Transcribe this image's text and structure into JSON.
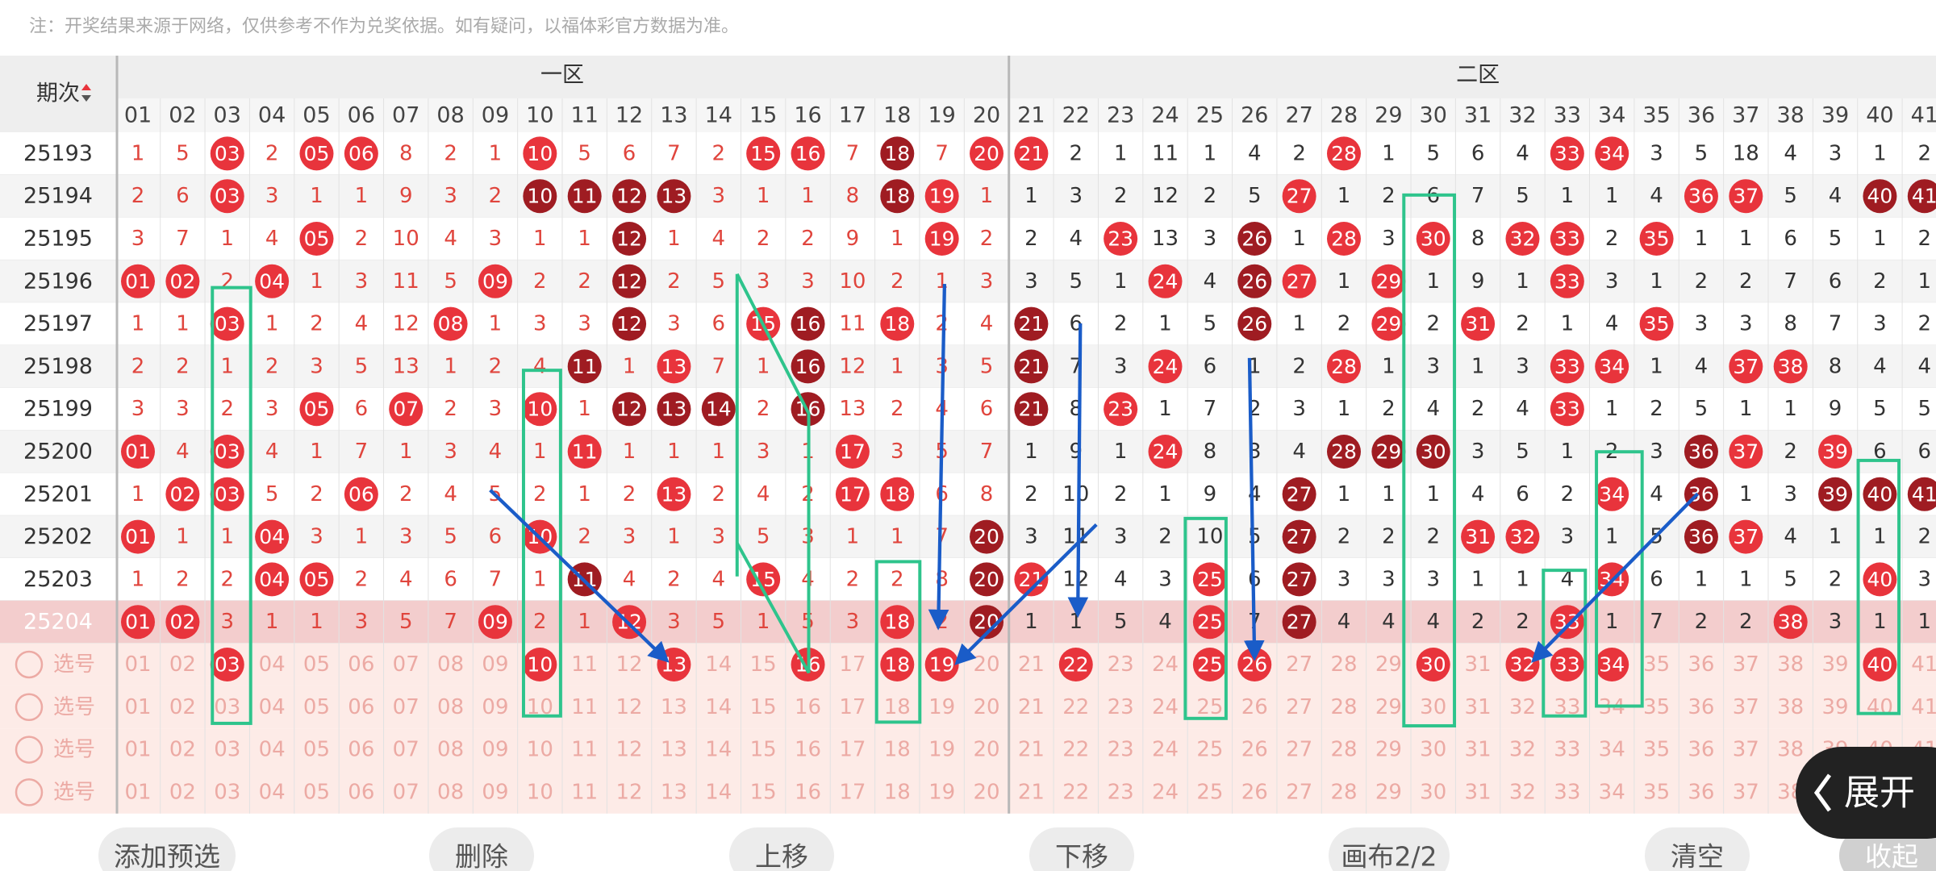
{
  "note": "注：开奖结果来源于网络，仅供参考不作为兑奖依据。如有疑问，以福体彩官方数据为准。",
  "header": {
    "period": "期次",
    "zones": [
      "一区",
      "二区"
    ],
    "numbers": [
      "01",
      "02",
      "03",
      "04",
      "05",
      "06",
      "07",
      "08",
      "09",
      "10",
      "11",
      "12",
      "13",
      "14",
      "15",
      "16",
      "17",
      "18",
      "19",
      "20",
      "21",
      "22",
      "23",
      "24",
      "25",
      "26",
      "27",
      "28",
      "29",
      "30",
      "31",
      "32",
      "33",
      "34",
      "35",
      "36",
      "37",
      "38",
      "39",
      "40",
      "41"
    ]
  },
  "colors": {
    "red": "#e8343c",
    "dark": "#9f1c22",
    "zone1_text": "#e0453d",
    "zone2_text": "#333333",
    "highlight": "#f3cdcd",
    "select_bg": "#fdebe7",
    "select_text": "#ecaaa4"
  },
  "rows": [
    {
      "period": "25193",
      "cells": [
        "1",
        "5",
        {
          "text": "03",
          "ball": "red"
        },
        "2",
        {
          "text": "05",
          "ball": "red"
        },
        {
          "text": "06",
          "ball": "red"
        },
        "8",
        "2",
        "1",
        {
          "text": "10",
          "ball": "red"
        },
        "5",
        "6",
        "7",
        "2",
        {
          "text": "15",
          "ball": "red"
        },
        {
          "text": "16",
          "ball": "red"
        },
        "7",
        {
          "text": "18",
          "ball": "dark"
        },
        "7",
        {
          "text": "20",
          "ball": "red"
        },
        {
          "text": "21",
          "ball": "red"
        },
        "2",
        "1",
        "11",
        "1",
        "4",
        "2",
        {
          "text": "28",
          "ball": "red"
        },
        "1",
        "5",
        "6",
        "4",
        {
          "text": "33",
          "ball": "red"
        },
        {
          "text": "34",
          "ball": "red"
        },
        "3",
        "5",
        "18",
        "4",
        "3",
        "1",
        "2"
      ]
    },
    {
      "period": "25194",
      "cells": [
        "2",
        "6",
        {
          "text": "03",
          "ball": "red"
        },
        "3",
        "1",
        "1",
        "9",
        "3",
        "2",
        {
          "text": "10",
          "ball": "dark"
        },
        {
          "text": "11",
          "ball": "dark"
        },
        {
          "text": "12",
          "ball": "dark"
        },
        {
          "text": "13",
          "ball": "dark"
        },
        "3",
        "1",
        "1",
        "8",
        {
          "text": "18",
          "ball": "dark"
        },
        {
          "text": "19",
          "ball": "red"
        },
        "1",
        "1",
        "3",
        "2",
        "12",
        "2",
        "5",
        {
          "text": "27",
          "ball": "red"
        },
        "1",
        "2",
        "6",
        "7",
        "5",
        "1",
        "1",
        "4",
        {
          "text": "36",
          "ball": "red"
        },
        {
          "text": "37",
          "ball": "red"
        },
        "5",
        "4",
        {
          "text": "40",
          "ball": "dark"
        },
        {
          "text": "41",
          "ball": "dark"
        }
      ]
    },
    {
      "period": "25195",
      "cells": [
        "3",
        "7",
        "1",
        "4",
        {
          "text": "05",
          "ball": "red"
        },
        "2",
        "10",
        "4",
        "3",
        "1",
        "1",
        {
          "text": "12",
          "ball": "dark"
        },
        "1",
        "4",
        "2",
        "2",
        "9",
        "1",
        {
          "text": "19",
          "ball": "red"
        },
        "2",
        "2",
        "4",
        {
          "text": "23",
          "ball": "red"
        },
        "13",
        "3",
        {
          "text": "26",
          "ball": "dark"
        },
        "1",
        {
          "text": "28",
          "ball": "red"
        },
        "3",
        {
          "text": "30",
          "ball": "red"
        },
        "8",
        {
          "text": "32",
          "ball": "red"
        },
        {
          "text": "33",
          "ball": "red"
        },
        "2",
        {
          "text": "35",
          "ball": "red"
        },
        "1",
        "1",
        "6",
        "5",
        "1",
        "2"
      ]
    },
    {
      "period": "25196",
      "cells": [
        {
          "text": "01",
          "ball": "red"
        },
        {
          "text": "02",
          "ball": "red"
        },
        "2",
        {
          "text": "04",
          "ball": "red"
        },
        "1",
        "3",
        "11",
        "5",
        {
          "text": "09",
          "ball": "red"
        },
        "2",
        "2",
        {
          "text": "12",
          "ball": "dark"
        },
        "2",
        "5",
        "3",
        "3",
        "10",
        "2",
        "1",
        "3",
        "3",
        "5",
        "1",
        {
          "text": "24",
          "ball": "red"
        },
        "4",
        {
          "text": "26",
          "ball": "dark"
        },
        {
          "text": "27",
          "ball": "red"
        },
        "1",
        {
          "text": "29",
          "ball": "red"
        },
        "1",
        "9",
        "1",
        {
          "text": "33",
          "ball": "red"
        },
        "3",
        "1",
        "2",
        "2",
        "7",
        "6",
        "2",
        "1"
      ]
    },
    {
      "period": "25197",
      "cells": [
        "1",
        "1",
        {
          "text": "03",
          "ball": "red"
        },
        "1",
        "2",
        "4",
        "12",
        {
          "text": "08",
          "ball": "red"
        },
        "1",
        "3",
        "3",
        {
          "text": "12",
          "ball": "dark"
        },
        "3",
        "6",
        {
          "text": "15",
          "ball": "red"
        },
        {
          "text": "16",
          "ball": "dark"
        },
        "11",
        {
          "text": "18",
          "ball": "red"
        },
        "2",
        "4",
        {
          "text": "21",
          "ball": "dark"
        },
        "6",
        "2",
        "1",
        "5",
        {
          "text": "26",
          "ball": "dark"
        },
        "1",
        "2",
        {
          "text": "29",
          "ball": "red"
        },
        "2",
        {
          "text": "31",
          "ball": "red"
        },
        "2",
        "1",
        "4",
        {
          "text": "35",
          "ball": "red"
        },
        "3",
        "3",
        "8",
        "7",
        "3",
        "2"
      ]
    },
    {
      "period": "25198",
      "cells": [
        "2",
        "2",
        "1",
        "2",
        "3",
        "5",
        "13",
        "1",
        "2",
        "4",
        {
          "text": "11",
          "ball": "dark"
        },
        "1",
        {
          "text": "13",
          "ball": "red"
        },
        "7",
        "1",
        {
          "text": "16",
          "ball": "dark"
        },
        "12",
        "1",
        "3",
        "5",
        {
          "text": "21",
          "ball": "dark"
        },
        "7",
        "3",
        {
          "text": "24",
          "ball": "red"
        },
        "6",
        "1",
        "2",
        {
          "text": "28",
          "ball": "red"
        },
        "1",
        "3",
        "1",
        "3",
        {
          "text": "33",
          "ball": "red"
        },
        {
          "text": "34",
          "ball": "red"
        },
        "1",
        "4",
        {
          "text": "37",
          "ball": "red"
        },
        {
          "text": "38",
          "ball": "red"
        },
        "8",
        "4",
        "4"
      ]
    },
    {
      "period": "25199",
      "cells": [
        "3",
        "3",
        "2",
        "3",
        {
          "text": "05",
          "ball": "red"
        },
        "6",
        {
          "text": "07",
          "ball": "red"
        },
        "2",
        "3",
        {
          "text": "10",
          "ball": "red"
        },
        "1",
        {
          "text": "12",
          "ball": "dark"
        },
        {
          "text": "13",
          "ball": "dark"
        },
        {
          "text": "14",
          "ball": "dark"
        },
        "2",
        {
          "text": "16",
          "ball": "dark"
        },
        "13",
        "2",
        "4",
        "6",
        {
          "text": "21",
          "ball": "dark"
        },
        "8",
        {
          "text": "23",
          "ball": "red"
        },
        "1",
        "7",
        "2",
        "3",
        "1",
        "2",
        "4",
        "2",
        "4",
        {
          "text": "33",
          "ball": "red"
        },
        "1",
        "2",
        "5",
        "1",
        "1",
        "9",
        "5",
        "5"
      ]
    },
    {
      "period": "25200",
      "cells": [
        {
          "text": "01",
          "ball": "red"
        },
        "4",
        {
          "text": "03",
          "ball": "red"
        },
        "4",
        "1",
        "7",
        "1",
        "3",
        "4",
        "1",
        {
          "text": "11",
          "ball": "red"
        },
        "1",
        "1",
        "1",
        "3",
        "1",
        {
          "text": "17",
          "ball": "red"
        },
        "3",
        "5",
        "7",
        "1",
        "9",
        "1",
        {
          "text": "24",
          "ball": "red"
        },
        "8",
        "3",
        "4",
        {
          "text": "28",
          "ball": "dark"
        },
        {
          "text": "29",
          "ball": "dark"
        },
        {
          "text": "30",
          "ball": "dark"
        },
        "3",
        "5",
        "1",
        "2",
        "3",
        {
          "text": "36",
          "ball": "dark"
        },
        {
          "text": "37",
          "ball": "red"
        },
        "2",
        {
          "text": "39",
          "ball": "red"
        },
        "6",
        "6"
      ]
    },
    {
      "period": "25201",
      "cells": [
        "1",
        {
          "text": "02",
          "ball": "red"
        },
        {
          "text": "03",
          "ball": "red"
        },
        "5",
        "2",
        {
          "text": "06",
          "ball": "red"
        },
        "2",
        "4",
        "5",
        "2",
        "1",
        "2",
        {
          "text": "13",
          "ball": "red"
        },
        "2",
        "4",
        "2",
        {
          "text": "17",
          "ball": "red"
        },
        {
          "text": "18",
          "ball": "red"
        },
        "6",
        "8",
        "2",
        "10",
        "2",
        "1",
        "9",
        "4",
        {
          "text": "27",
          "ball": "dark"
        },
        "1",
        "1",
        "1",
        "4",
        "6",
        "2",
        {
          "text": "34",
          "ball": "red"
        },
        "4",
        {
          "text": "36",
          "ball": "dark"
        },
        "1",
        "3",
        {
          "text": "39",
          "ball": "dark"
        },
        {
          "text": "40",
          "ball": "dark"
        },
        {
          "text": "41",
          "ball": "dark"
        }
      ]
    },
    {
      "period": "25202",
      "cells": [
        {
          "text": "01",
          "ball": "red"
        },
        "1",
        "1",
        {
          "text": "04",
          "ball": "red"
        },
        "3",
        "1",
        "3",
        "5",
        "6",
        {
          "text": "10",
          "ball": "red"
        },
        "2",
        "3",
        "1",
        "3",
        "5",
        "3",
        "1",
        "1",
        "7",
        {
          "text": "20",
          "ball": "dark"
        },
        "3",
        "11",
        "3",
        "2",
        "10",
        "5",
        {
          "text": "27",
          "ball": "dark"
        },
        "2",
        "2",
        "2",
        {
          "text": "31",
          "ball": "red"
        },
        {
          "text": "32",
          "ball": "red"
        },
        "3",
        "1",
        "5",
        {
          "text": "36",
          "ball": "dark"
        },
        {
          "text": "37",
          "ball": "red"
        },
        "4",
        "1",
        "1",
        "2"
      ]
    },
    {
      "period": "25203",
      "cells": [
        "1",
        "2",
        "2",
        {
          "text": "04",
          "ball": "red"
        },
        {
          "text": "05",
          "ball": "red"
        },
        "2",
        "4",
        "6",
        "7",
        "1",
        {
          "text": "11",
          "ball": "dark"
        },
        "4",
        "2",
        "4",
        {
          "text": "15",
          "ball": "red"
        },
        "4",
        "2",
        "2",
        "8",
        {
          "text": "20",
          "ball": "dark"
        },
        {
          "text": "21",
          "ball": "red"
        },
        "12",
        "4",
        "3",
        {
          "text": "25",
          "ball": "red"
        },
        "6",
        {
          "text": "27",
          "ball": "dark"
        },
        "3",
        "3",
        "3",
        "1",
        "1",
        "4",
        {
          "text": "34",
          "ball": "red"
        },
        "6",
        "1",
        "1",
        "5",
        "2",
        {
          "text": "40",
          "ball": "red"
        },
        "3"
      ]
    },
    {
      "period": "25204",
      "highlight": true,
      "cells": [
        {
          "text": "01",
          "ball": "red"
        },
        {
          "text": "02",
          "ball": "red"
        },
        "3",
        "1",
        "1",
        "3",
        "5",
        "7",
        {
          "text": "09",
          "ball": "red"
        },
        "2",
        "1",
        {
          "text": "12",
          "ball": "red"
        },
        "3",
        "5",
        "1",
        "5",
        "3",
        {
          "text": "18",
          "ball": "red"
        },
        "2",
        {
          "text": "20",
          "ball": "dark"
        },
        "1",
        "1",
        "5",
        "4",
        {
          "text": "25",
          "ball": "red"
        },
        "7",
        {
          "text": "27",
          "ball": "dark"
        },
        "4",
        "4",
        "4",
        "2",
        "2",
        {
          "text": "33",
          "ball": "red"
        },
        "1",
        "7",
        "2",
        "2",
        {
          "text": "38",
          "ball": "red"
        },
        "3",
        "1",
        "1"
      ]
    }
  ],
  "select_rows": [
    {
      "label": "选号",
      "cells": [
        "01",
        "02",
        {
          "text": "03",
          "ball": "red"
        },
        "04",
        "05",
        "06",
        "07",
        "08",
        "09",
        {
          "text": "10",
          "ball": "red"
        },
        "11",
        "12",
        {
          "text": "13",
          "ball": "red"
        },
        "14",
        "15",
        {
          "text": "16",
          "ball": "red"
        },
        "17",
        {
          "text": "18",
          "ball": "red"
        },
        {
          "text": "19",
          "ball": "red"
        },
        "20",
        "21",
        {
          "text": "22",
          "ball": "red"
        },
        "23",
        "24",
        {
          "text": "25",
          "ball": "red"
        },
        {
          "text": "26",
          "ball": "red"
        },
        "27",
        "28",
        "29",
        {
          "text": "30",
          "ball": "red"
        },
        "31",
        {
          "text": "32",
          "ball": "red"
        },
        {
          "text": "33",
          "ball": "red"
        },
        {
          "text": "34",
          "ball": "red"
        },
        "35",
        "36",
        "37",
        "38",
        "39",
        {
          "text": "40",
          "ball": "red"
        },
        "41"
      ]
    },
    {
      "label": "选号",
      "cells": [
        "01",
        "02",
        "03",
        "04",
        "05",
        "06",
        "07",
        "08",
        "09",
        "10",
        "11",
        "12",
        "13",
        "14",
        "15",
        "16",
        "17",
        "18",
        "19",
        "20",
        "21",
        "22",
        "23",
        "24",
        "25",
        "26",
        "27",
        "28",
        "29",
        "30",
        "31",
        "32",
        "33",
        "34",
        "35",
        "36",
        "37",
        "38",
        "39",
        "40",
        "41"
      ]
    },
    {
      "label": "选号",
      "cells": [
        "01",
        "02",
        "03",
        "04",
        "05",
        "06",
        "07",
        "08",
        "09",
        "10",
        "11",
        "12",
        "13",
        "14",
        "15",
        "16",
        "17",
        "18",
        "19",
        "20",
        "21",
        "22",
        "23",
        "24",
        "25",
        "26",
        "27",
        "28",
        "29",
        "30",
        "31",
        "32",
        "33",
        "34",
        "35",
        "36",
        "37",
        "38",
        "39",
        "40",
        "41"
      ]
    },
    {
      "label": "选号",
      "cells": [
        "01",
        "02",
        "03",
        "04",
        "05",
        "06",
        "07",
        "08",
        "09",
        "10",
        "11",
        "12",
        "13",
        "14",
        "15",
        "16",
        "17",
        "18",
        "19",
        "20",
        "21",
        "22",
        "23",
        "24",
        "25",
        "26",
        "27",
        "28",
        "29",
        "30",
        "31",
        "32",
        "33",
        "34",
        "35",
        "36",
        "37",
        "38",
        "39",
        "40",
        "41"
      ]
    }
  ],
  "expand": "展开",
  "buttons": [
    "添加预选",
    "删除",
    "上移",
    "下移",
    "画布2/2",
    "清空",
    "收起"
  ]
}
